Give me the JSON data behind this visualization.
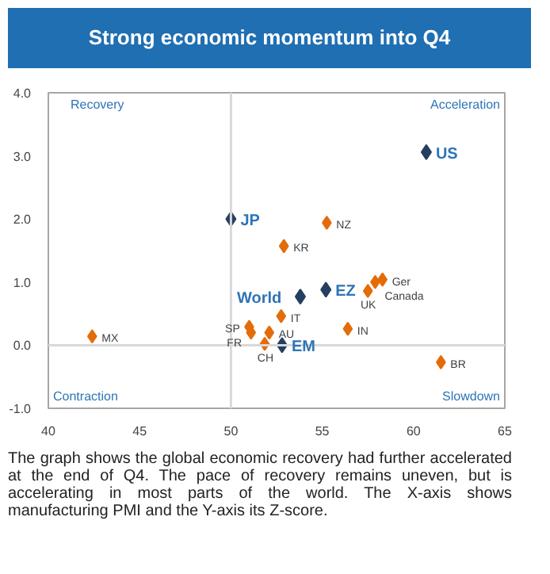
{
  "chart_data": {
    "type": "scatter",
    "title": "Strong economic momentum into Q4",
    "xlim": [
      40,
      65
    ],
    "ylim": [
      -1,
      4
    ],
    "xticks": [
      40,
      45,
      50,
      55,
      60,
      65
    ],
    "yticks": [
      {
        "value": -1,
        "label": "-1.0"
      },
      {
        "value": 0,
        "label": "0.0"
      },
      {
        "value": 1,
        "label": "1.0"
      },
      {
        "value": 2,
        "label": "2.0"
      },
      {
        "value": 3,
        "label": "3.0"
      },
      {
        "value": 4,
        "label": "4.0"
      }
    ],
    "grid": false,
    "marker": "diamond",
    "ref_lines": [
      {
        "axis": "x",
        "value": 50,
        "color": "#d9d9d9"
      },
      {
        "axis": "y",
        "value": 0,
        "color": "#d9d9d9"
      }
    ],
    "series": [
      {
        "color": "#243f60",
        "x": [
          60.7,
          50,
          53.8,
          55.2,
          52.8
        ],
        "values": [
          3.06,
          2.0,
          0.77,
          0.88,
          0.0
        ]
      },
      {
        "color": "#e36c09",
        "x": [
          55.25,
          52.9,
          58.3,
          57.9,
          57.5,
          52.75,
          51.0,
          51.1,
          52.1,
          51.85,
          56.4,
          42.4,
          61.5
        ],
        "values": [
          1.94,
          1.57,
          1.04,
          1.0,
          0.86,
          0.46,
          0.29,
          0.2,
          0.2,
          0.02,
          0.26,
          0.14,
          -0.27
        ]
      }
    ],
    "annotations": [
      "Recovery",
      "Acceleration",
      "Contraction",
      "Slowdown",
      {
        "text": "US",
        "x": 60.7,
        "y": 3.06
      },
      {
        "text": "JP",
        "x": 50,
        "y": 2.0
      },
      {
        "text": "World",
        "x": 53.8,
        "y": 0.77
      },
      {
        "text": "EZ",
        "x": 55.2,
        "y": 0.88
      },
      {
        "text": "EM",
        "x": 52.8,
        "y": 0.0
      },
      {
        "text": "NZ",
        "x": 55.25,
        "y": 1.94
      },
      {
        "text": "KR",
        "x": 52.9,
        "y": 1.57
      },
      {
        "text": "Ger",
        "x": 58.3,
        "y": 1.04
      },
      {
        "text": "Canada",
        "x": 57.9,
        "y": 1.0
      },
      {
        "text": "UK",
        "x": 57.5,
        "y": 0.86
      },
      {
        "text": "IT",
        "x": 52.75,
        "y": 0.46
      },
      {
        "text": "SP",
        "x": 51.0,
        "y": 0.29
      },
      {
        "text": "FR",
        "x": 51.1,
        "y": 0.2
      },
      {
        "text": "AU",
        "x": 52.1,
        "y": 0.2
      },
      {
        "text": "CH",
        "x": 51.85,
        "y": 0.02
      },
      {
        "text": "IN",
        "x": 56.4,
        "y": 0.26
      },
      {
        "text": "MX",
        "x": 42.4,
        "y": 0.14
      },
      {
        "text": "BR",
        "x": 61.5,
        "y": -0.27
      },
      "The graph shows the global economic recovery had further accelerated at the end of Q4. The pace of recovery remains uneven, but is accelerating in most parts of the world. The X-axis shows manufacturing PMI and the Y-axis its Z-score."
    ]
  }
}
